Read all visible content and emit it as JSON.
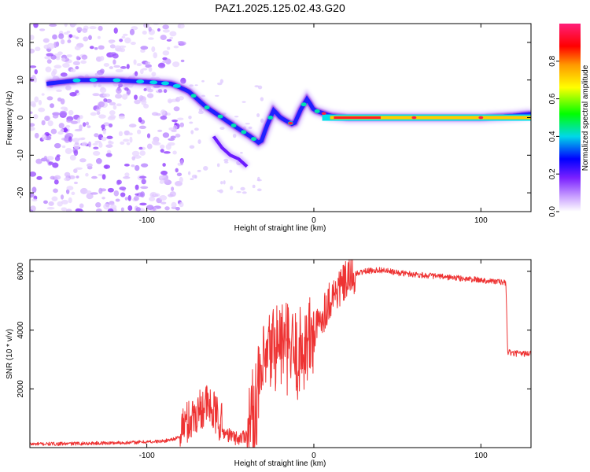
{
  "title": "PAZ1.2025.125.02.43.G20",
  "chart_data": [
    {
      "type": "heatmap",
      "title": "PAZ1.2025.125.02.43.G20",
      "xlabel": "Height of straight line (km)",
      "ylabel": "Frequency (Hz)",
      "xlim": [
        -170,
        130
      ],
      "ylim": [
        -25,
        25
      ],
      "x_ticks": [
        -100,
        0,
        100
      ],
      "y_ticks": [
        -20,
        -10,
        0,
        10,
        20
      ],
      "colorbar": {
        "label": "Normalized spectral amplitude",
        "range": [
          0,
          1
        ],
        "ticks": [
          0.0,
          0.2,
          0.4,
          0.6,
          0.8
        ],
        "colors": [
          "#ffffff",
          "#9a3bff",
          "#0000ff",
          "#00e5e5",
          "#00ff00",
          "#ffff00",
          "#ff8800",
          "#ff0000",
          "#ff1f7a"
        ]
      },
      "ridge": {
        "x": [
          -160,
          -140,
          -120,
          -100,
          -85,
          -75,
          -65,
          -55,
          -45,
          -38,
          -32,
          -28,
          -24,
          -20,
          -16,
          -12,
          -8,
          -4,
          0,
          10,
          20,
          40,
          60,
          80,
          100,
          120,
          130
        ],
        "y": [
          9,
          10,
          10,
          9.5,
          9,
          7,
          3,
          0,
          -3,
          -5,
          -7,
          -2,
          2,
          0,
          -1,
          -2,
          2,
          5,
          2,
          0.5,
          0,
          0,
          0,
          0,
          0,
          0.5,
          1
        ]
      },
      "secondary_ridge": {
        "x": [
          -60,
          -55,
          -50,
          -45,
          -40
        ],
        "y": [
          -5,
          -8,
          -10,
          -11,
          -13
        ]
      }
    },
    {
      "type": "line",
      "xlabel": "Height of straight line (km)",
      "ylabel": "SNR (10 * v/v)",
      "xlim": [
        -170,
        130
      ],
      "ylim": [
        0,
        6400
      ],
      "x_ticks": [
        -100,
        0,
        100
      ],
      "y_ticks": [
        2000,
        4000,
        6000
      ],
      "color": "#ee3333",
      "series": [
        {
          "x": [
            -170,
            -150,
            -130,
            -110,
            -90,
            -80,
            -75,
            -70,
            -65,
            -60,
            -55,
            -50,
            -45,
            -40,
            -35,
            -30,
            -25,
            -20,
            -15,
            -10,
            -5,
            0,
            5,
            10,
            15,
            20,
            25,
            30,
            40,
            50,
            60,
            70,
            80,
            90,
            100,
            110,
            115,
            116,
            120,
            130
          ],
          "y": [
            120,
            130,
            150,
            170,
            220,
            350,
            600,
            900,
            1200,
            900,
            500,
            350,
            250,
            400,
            1500,
            2600,
            3400,
            3600,
            3300,
            3100,
            3500,
            3800,
            4500,
            5100,
            5400,
            5700,
            5900,
            6000,
            6050,
            5950,
            5900,
            5850,
            5800,
            5750,
            5700,
            5650,
            5600,
            3250,
            3200,
            3200
          ]
        }
      ]
    }
  ]
}
